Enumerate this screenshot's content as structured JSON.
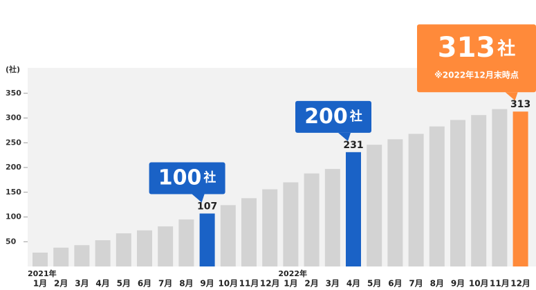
{
  "chart_data": {
    "type": "bar",
    "y_label": "(社)",
    "categories": [
      "1月",
      "2月",
      "3月",
      "4月",
      "5月",
      "6月",
      "7月",
      "8月",
      "9月",
      "10月",
      "11月",
      "12月",
      "1月",
      "2月",
      "3月",
      "4月",
      "5月",
      "6月",
      "7月",
      "8月",
      "9月",
      "10月",
      "11月",
      "12月"
    ],
    "year_labels": [
      {
        "text": "2021年",
        "at": 0
      },
      {
        "text": "2022年",
        "at": 12
      }
    ],
    "values": [
      28,
      38,
      43,
      53,
      67,
      73,
      81,
      95,
      107,
      124,
      138,
      156,
      170,
      188,
      197,
      231,
      246,
      257,
      268,
      283,
      296,
      306,
      318,
      313
    ],
    "colors": [
      "#d3d3d3",
      "#d3d3d3",
      "#d3d3d3",
      "#d3d3d3",
      "#d3d3d3",
      "#d3d3d3",
      "#d3d3d3",
      "#d3d3d3",
      "#1a62c6",
      "#d3d3d3",
      "#d3d3d3",
      "#d3d3d3",
      "#d3d3d3",
      "#d3d3d3",
      "#d3d3d3",
      "#1a62c6",
      "#d3d3d3",
      "#d3d3d3",
      "#d3d3d3",
      "#d3d3d3",
      "#d3d3d3",
      "#d3d3d3",
      "#d3d3d3",
      "#ff8a3a"
    ],
    "value_labels": [
      null,
      null,
      null,
      null,
      null,
      null,
      null,
      null,
      "107",
      null,
      null,
      null,
      null,
      null,
      null,
      "231",
      null,
      null,
      null,
      null,
      null,
      null,
      null,
      "313"
    ],
    "callouts": [
      null,
      null,
      null,
      null,
      null,
      null,
      null,
      null,
      {
        "number": "100",
        "unit": "社"
      },
      null,
      null,
      null,
      null,
      null,
      null,
      {
        "number": "200",
        "unit": "社"
      },
      null,
      null,
      null,
      null,
      null,
      null,
      null,
      {
        "number": "313",
        "unit": "社",
        "note": "※2022年12月末時点"
      }
    ],
    "ylim": [
      0,
      400
    ],
    "yticks": [
      50,
      100,
      150,
      200,
      250,
      300,
      350
    ]
  }
}
